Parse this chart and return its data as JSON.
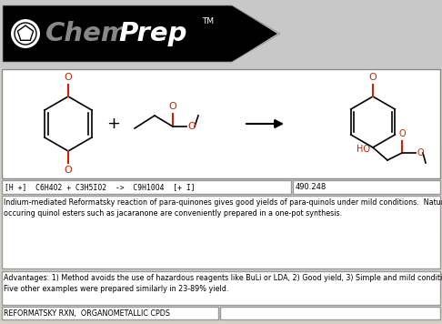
{
  "bg_color": "#d4d0c8",
  "white": "#ffffff",
  "black": "#000000",
  "red": "#cc2200",
  "gray_light": "#b0b0b0",
  "header_arrow_color": "#111111",
  "formula_text": "[H +]  C6H4O2 + C3H5IO2  ->  C9H10O4  [+ I]",
  "mw_text": "490.248",
  "desc_text": "Indium-mediated Reformatsky reaction of para-quinones gives good yields of para-quinols under mild conditions.  Naturally\noccuring quinol esters such as jacaranone are conveniently prepared in a one-pot synthesis.",
  "advantages_text": "Advantages: 1) Method avoids the use of hazardous reagents like BuLi or LDA, 2) Good yield, 3) Simple and mild conditions.\nFive other examples were prepared similarly in 23-89% yield.",
  "footer_text": "REFORMATSKY RXN,  ORGANOMETALLIC CPDS",
  "figsize": [
    4.86,
    3.56
  ],
  "dpi": 100
}
